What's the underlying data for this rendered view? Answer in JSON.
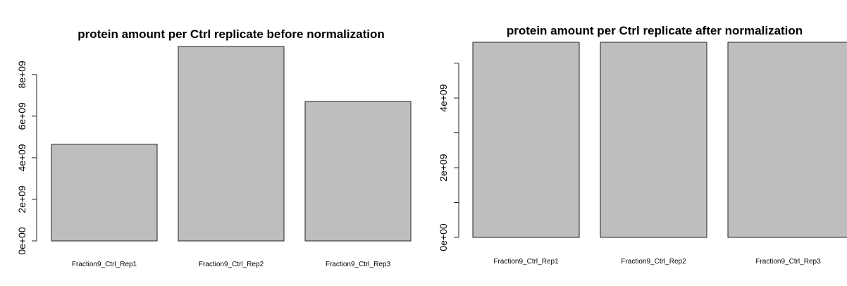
{
  "chart_data": [
    {
      "type": "bar",
      "title": "protein amount per Ctrl replicate before normalization",
      "categories": [
        "Fraction9_Ctrl_Rep1",
        "Fraction9_Ctrl_Rep2",
        "Fraction9_Ctrl_Rep3"
      ],
      "values": [
        4650000000,
        9350000000,
        6700000000
      ],
      "xlabel": "",
      "ylabel": "",
      "ylim": [
        0,
        9350000000
      ],
      "yticks": [
        0,
        2000000000,
        4000000000,
        6000000000,
        8000000000
      ],
      "ytick_labels": [
        "0e+00",
        "2e+09",
        "4e+09",
        "6e+09",
        "8e+09"
      ],
      "grid": false
    },
    {
      "type": "bar",
      "title": "protein amount per Ctrl replicate after normalization",
      "categories": [
        "Fraction9_Ctrl_Rep1",
        "Fraction9_Ctrl_Rep2",
        "Fraction9_Ctrl_Rep3"
      ],
      "values": [
        5600000000,
        5600000000,
        5600000000
      ],
      "xlabel": "",
      "ylabel": "",
      "ylim": [
        0,
        5600000000
      ],
      "yticks": [
        0,
        1000000000,
        2000000000,
        3000000000,
        4000000000,
        5000000000
      ],
      "ytick_labels": [
        "0e+00",
        "",
        "2e+09",
        "",
        "4e+09",
        ""
      ],
      "grid": false
    }
  ]
}
